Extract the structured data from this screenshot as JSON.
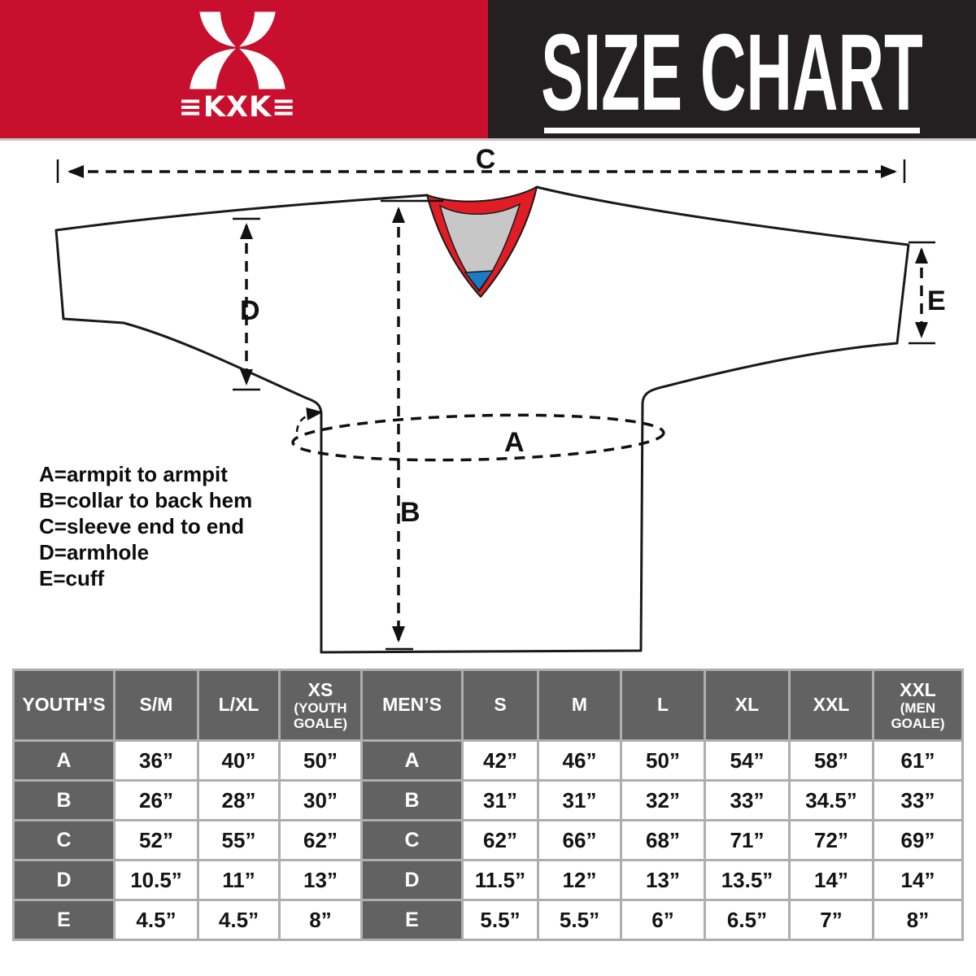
{
  "header": {
    "logo_text": "≡KXK≡",
    "title": "SIZE CHART"
  },
  "diagram": {
    "measure_labels": {
      "a": "A",
      "b": "B",
      "c": "C",
      "d": "D",
      "e": "E"
    },
    "legend": [
      "A=armpit to armpit",
      "B=collar to back hem",
      "C=sleeve end to end",
      "D=armhole",
      "E=cuff"
    ]
  },
  "size_table": {
    "columns": [
      {
        "label": "YOUTH’S"
      },
      {
        "label": "S/M"
      },
      {
        "label": "L/XL"
      },
      {
        "label": "XS",
        "sub_lines": [
          "(YOUTH",
          "GOALE)"
        ]
      },
      {
        "label": "MEN’S"
      },
      {
        "label": "S"
      },
      {
        "label": "M"
      },
      {
        "label": "L"
      },
      {
        "label": "XL"
      },
      {
        "label": "XXL"
      },
      {
        "label": "XXL",
        "sub_lines": [
          "(MEN",
          "GOALE)"
        ]
      }
    ],
    "rows": [
      {
        "key": "A",
        "youth": [
          "36”",
          "40”",
          "50”"
        ],
        "men": [
          "42”",
          "46”",
          "50”",
          "54”",
          "58”",
          "61”"
        ]
      },
      {
        "key": "B",
        "youth": [
          "26”",
          "28”",
          "30”"
        ],
        "men": [
          "31”",
          "31”",
          "32”",
          "33”",
          "34.5”",
          "33”"
        ]
      },
      {
        "key": "C",
        "youth": [
          "52”",
          "55”",
          "62”"
        ],
        "men": [
          "62”",
          "66”",
          "68”",
          "71”",
          "72”",
          "69”"
        ]
      },
      {
        "key": "D",
        "youth": [
          "10.5”",
          "11”",
          "13”"
        ],
        "men": [
          "11.5”",
          "12”",
          "13”",
          "13.5”",
          "14”",
          "14”"
        ]
      },
      {
        "key": "E",
        "youth": [
          "4.5”",
          "4.5”",
          "8”"
        ],
        "men": [
          "5.5”",
          "5.5”",
          "6”",
          "6.5”",
          "7”",
          "8”"
        ]
      }
    ]
  },
  "colors": {
    "brand_red": "#c8102e",
    "header_black": "#242021",
    "collar_red": "#e01d24",
    "collar_gray": "#c7c7c7",
    "collar_blue": "#1a7dc4",
    "table_header_gray": "#636263",
    "grid_line_gray": "#aeaeae"
  }
}
